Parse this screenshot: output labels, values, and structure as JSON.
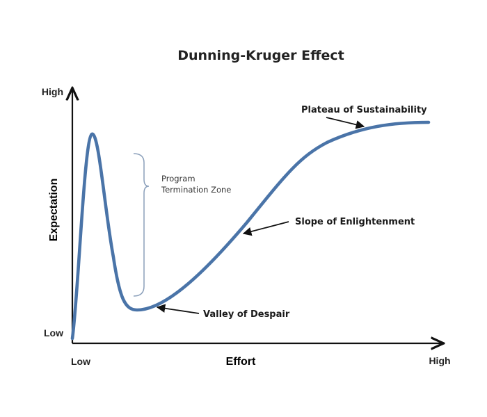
{
  "title": "Dunning-Kruger Effect",
  "x_axis": {
    "label": "Effort",
    "low": "Low",
    "high": "High"
  },
  "y_axis": {
    "label": "Expectation",
    "low": "Low",
    "high": "High"
  },
  "annotations": {
    "plateau": "Plateau of Sustainability",
    "slope": "Slope of Enlightenment",
    "valley": "Valley of Despair",
    "zone_line1": "Program",
    "zone_line2": "Termination Zone"
  },
  "colors": {
    "curve": "#4a74a8",
    "axis": "#111111",
    "bracket": "#8a9fba"
  }
}
